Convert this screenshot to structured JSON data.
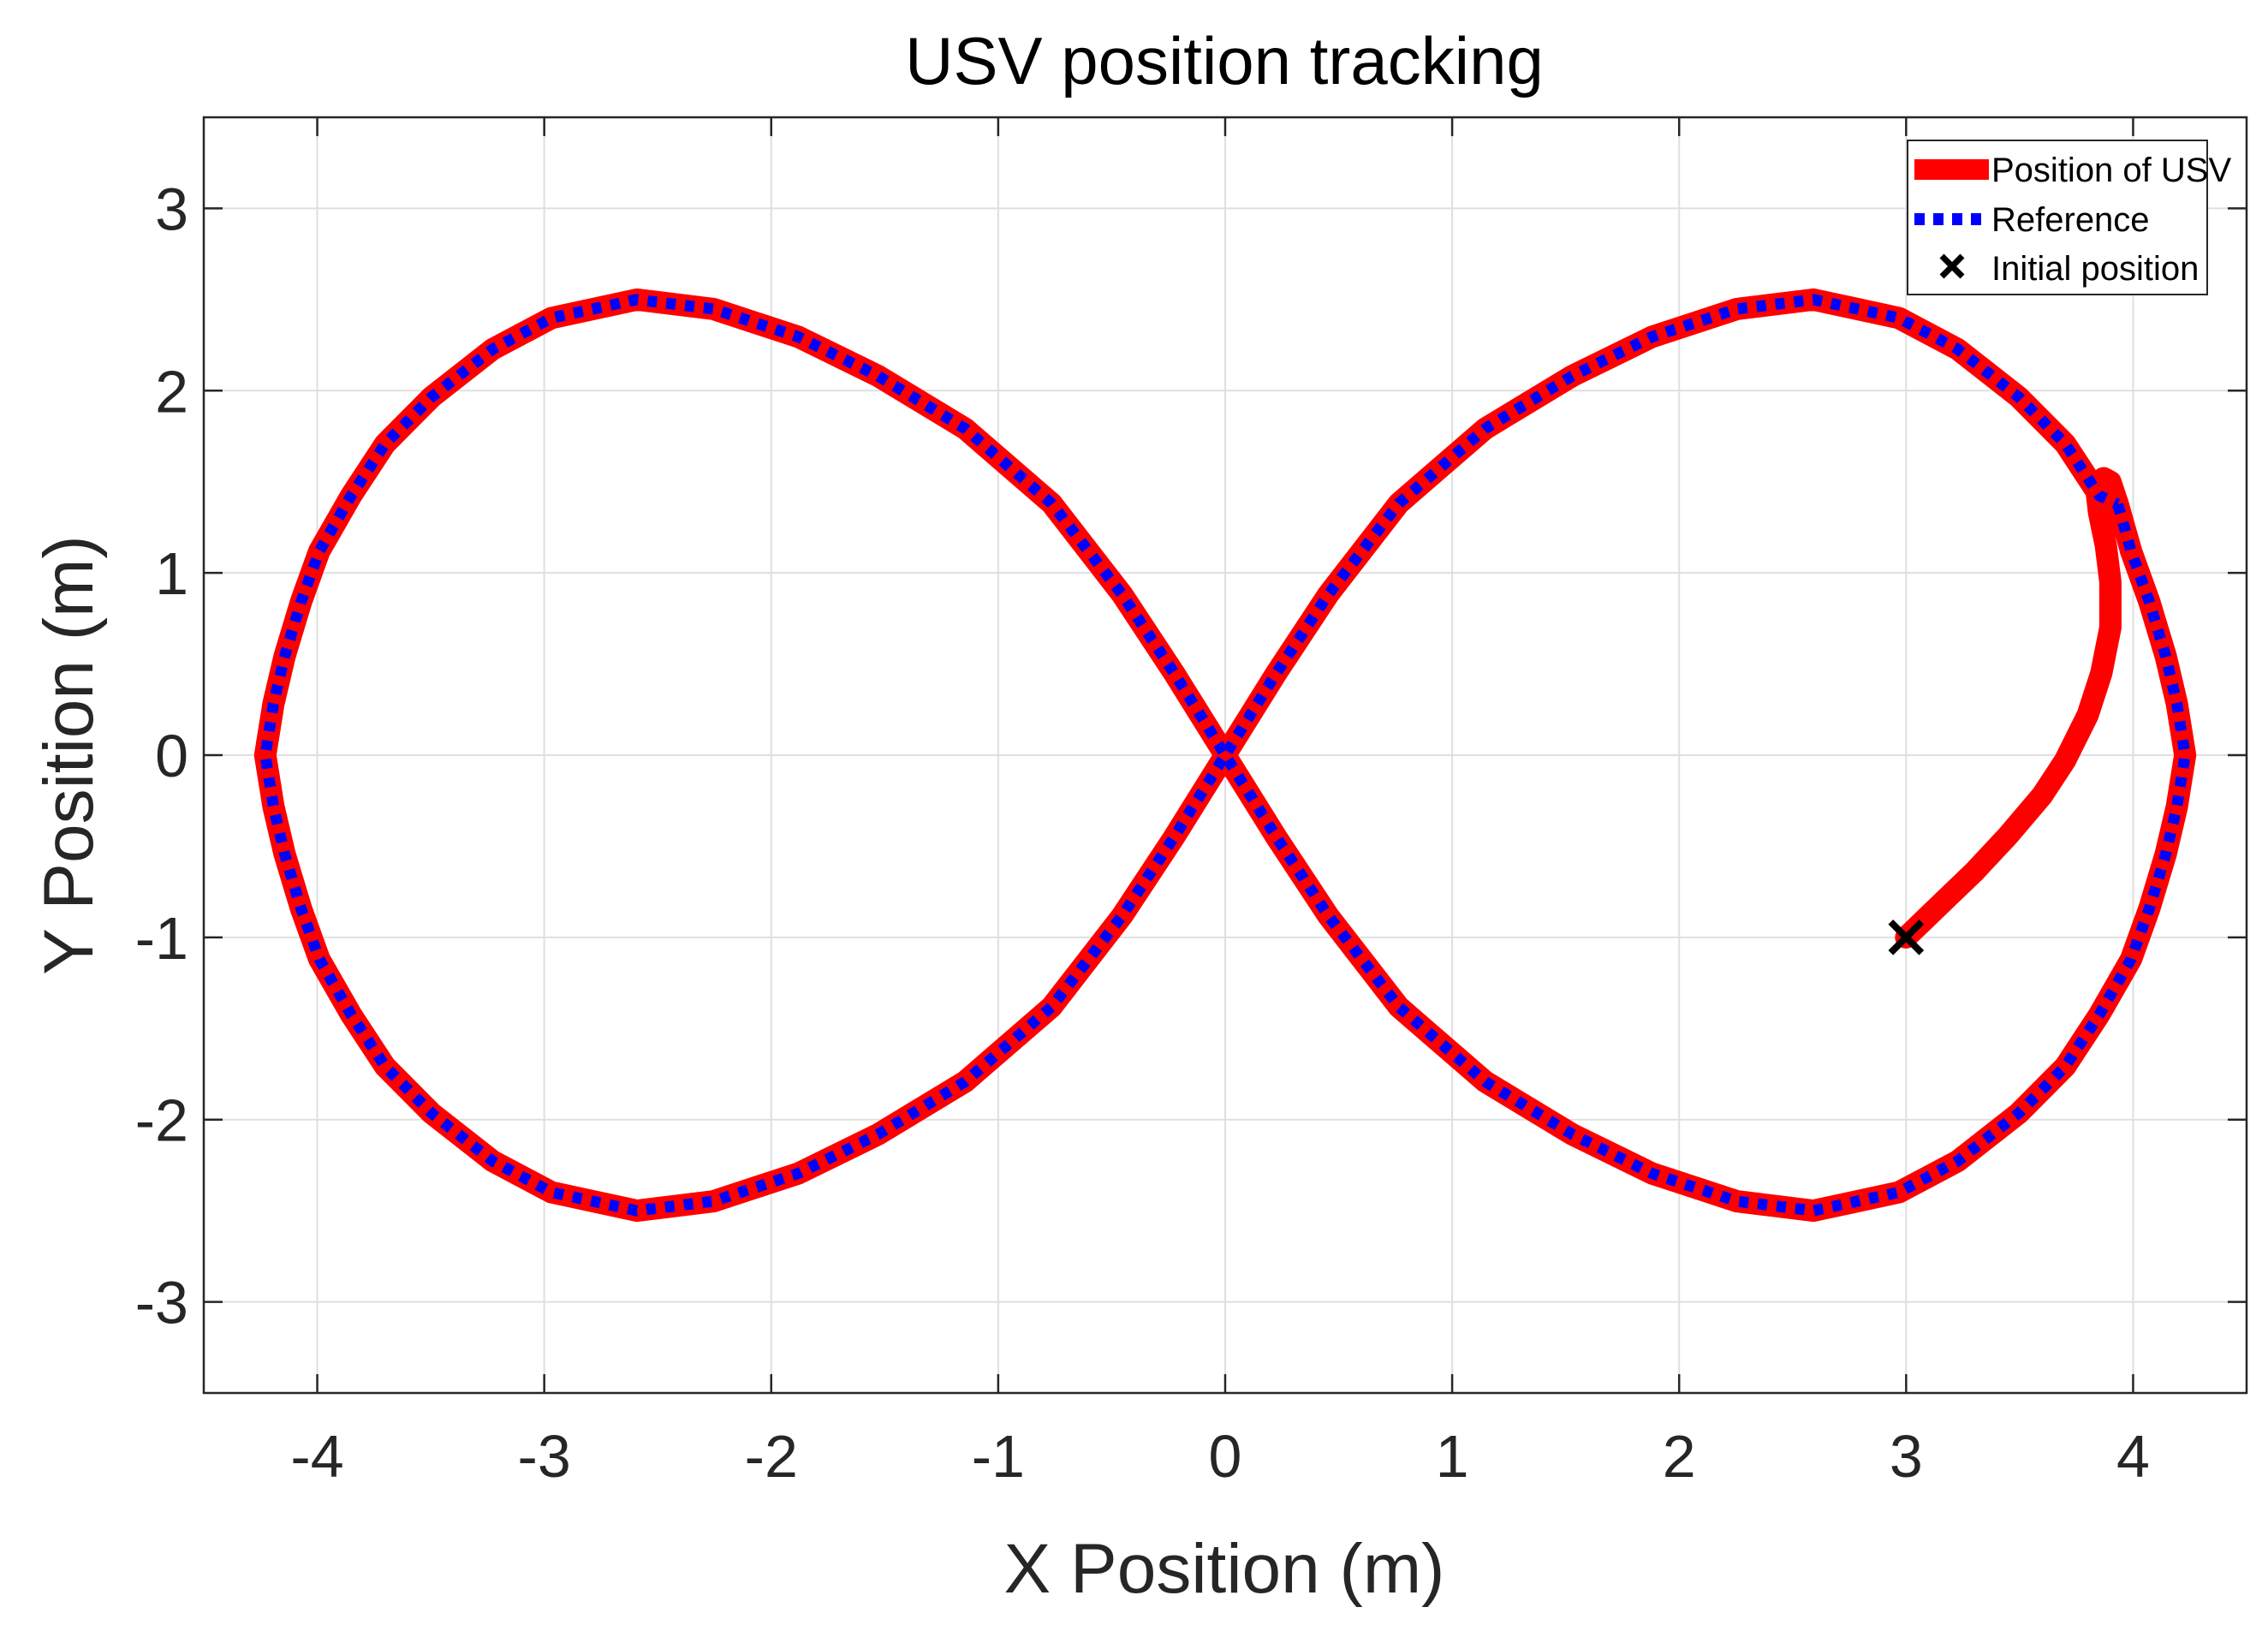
{
  "chart_data": {
    "type": "line",
    "title": "USV position tracking",
    "xlabel": "X Position (m)",
    "ylabel": "Y Position (m)",
    "xlim": [
      -4.5,
      4.5
    ],
    "ylim": [
      -3.5,
      3.5
    ],
    "xticks": [
      -4,
      -3,
      -2,
      -1,
      0,
      1,
      2,
      3,
      4
    ],
    "yticks": [
      -3,
      -2,
      -1,
      0,
      1,
      2,
      3
    ],
    "grid": true,
    "legend_position": "top-right",
    "series": [
      {
        "name": "Position of USV",
        "color": "#ff0000",
        "style": "solid",
        "points": [
          [
            3.0,
            -1.0
          ],
          [
            3.15,
            -0.82
          ],
          [
            3.3,
            -0.64
          ],
          [
            3.45,
            -0.44
          ],
          [
            3.6,
            -0.22
          ],
          [
            3.7,
            -0.03
          ],
          [
            3.8,
            0.22
          ],
          [
            3.86,
            0.45
          ],
          [
            3.9,
            0.7
          ],
          [
            3.9,
            0.95
          ],
          [
            3.88,
            1.15
          ],
          [
            3.85,
            1.33
          ],
          [
            3.84,
            1.44
          ],
          [
            3.87,
            1.52
          ],
          [
            3.9,
            1.5
          ],
          [
            3.933,
            1.376
          ],
          [
            3.991,
            1.119
          ],
          [
            4.072,
            0.84
          ],
          [
            4.144,
            0.542
          ],
          [
            4.193,
            0.282
          ],
          [
            4.229,
            0.0
          ],
          [
            4.193,
            -0.282
          ],
          [
            4.144,
            -0.542
          ],
          [
            4.072,
            -0.84
          ],
          [
            3.991,
            -1.119
          ],
          [
            3.851,
            -1.424
          ],
          [
            3.701,
            -1.708
          ],
          [
            3.496,
            -1.965
          ],
          [
            3.227,
            -2.228
          ],
          [
            2.968,
            -2.399
          ],
          [
            2.592,
            -2.5
          ],
          [
            2.255,
            -2.448
          ],
          [
            1.88,
            -2.295
          ],
          [
            1.53,
            -2.081
          ],
          [
            1.146,
            -1.792
          ],
          [
            0.765,
            -1.381
          ],
          [
            0.454,
            -0.882
          ],
          [
            0.225,
            -0.449
          ],
          [
            0.0,
            0.0
          ],
          [
            -0.225,
            0.449
          ],
          [
            -0.454,
            0.882
          ],
          [
            -0.765,
            1.381
          ],
          [
            -1.146,
            1.792
          ],
          [
            -1.53,
            2.081
          ],
          [
            -1.88,
            2.295
          ],
          [
            -2.255,
            2.448
          ],
          [
            -2.592,
            2.5
          ],
          [
            -2.968,
            2.399
          ],
          [
            -3.227,
            2.228
          ],
          [
            -3.496,
            1.965
          ],
          [
            -3.701,
            1.708
          ],
          [
            -3.851,
            1.424
          ],
          [
            -3.991,
            1.119
          ],
          [
            -4.072,
            0.84
          ],
          [
            -4.144,
            0.542
          ],
          [
            -4.193,
            0.282
          ],
          [
            -4.229,
            0.0
          ],
          [
            -4.193,
            -0.282
          ],
          [
            -4.144,
            -0.542
          ],
          [
            -4.072,
            -0.84
          ],
          [
            -3.991,
            -1.119
          ],
          [
            -3.851,
            -1.424
          ],
          [
            -3.701,
            -1.708
          ],
          [
            -3.496,
            -1.965
          ],
          [
            -3.227,
            -2.228
          ],
          [
            -2.968,
            -2.399
          ],
          [
            -2.592,
            -2.5
          ],
          [
            -2.255,
            -2.448
          ],
          [
            -1.88,
            -2.295
          ],
          [
            -1.53,
            -2.081
          ],
          [
            -1.146,
            -1.792
          ],
          [
            -0.765,
            -1.381
          ],
          [
            -0.454,
            -0.882
          ],
          [
            -0.225,
            -0.449
          ],
          [
            0.0,
            0.0
          ],
          [
            0.225,
            0.449
          ],
          [
            0.454,
            0.882
          ],
          [
            0.765,
            1.381
          ],
          [
            1.146,
            1.792
          ],
          [
            1.53,
            2.081
          ],
          [
            1.88,
            2.295
          ],
          [
            2.255,
            2.448
          ],
          [
            2.592,
            2.5
          ],
          [
            2.968,
            2.399
          ],
          [
            3.227,
            2.228
          ],
          [
            3.496,
            1.965
          ],
          [
            3.701,
            1.708
          ],
          [
            3.851,
            1.424
          ],
          [
            3.933,
            1.376
          ]
        ]
      },
      {
        "name": "Reference",
        "color": "#0000ff",
        "style": "dotted",
        "points": [
          [
            3.933,
            1.376
          ],
          [
            3.991,
            1.119
          ],
          [
            4.072,
            0.84
          ],
          [
            4.144,
            0.542
          ],
          [
            4.193,
            0.282
          ],
          [
            4.229,
            0.0
          ],
          [
            4.193,
            -0.282
          ],
          [
            4.144,
            -0.542
          ],
          [
            4.072,
            -0.84
          ],
          [
            3.991,
            -1.119
          ],
          [
            3.851,
            -1.424
          ],
          [
            3.701,
            -1.708
          ],
          [
            3.496,
            -1.965
          ],
          [
            3.227,
            -2.228
          ],
          [
            2.968,
            -2.399
          ],
          [
            2.592,
            -2.5
          ],
          [
            2.255,
            -2.448
          ],
          [
            1.88,
            -2.295
          ],
          [
            1.53,
            -2.081
          ],
          [
            1.146,
            -1.792
          ],
          [
            0.765,
            -1.381
          ],
          [
            0.454,
            -0.882
          ],
          [
            0.225,
            -0.449
          ],
          [
            0.0,
            0.0
          ],
          [
            -0.225,
            0.449
          ],
          [
            -0.454,
            0.882
          ],
          [
            -0.765,
            1.381
          ],
          [
            -1.146,
            1.792
          ],
          [
            -1.53,
            2.081
          ],
          [
            -1.88,
            2.295
          ],
          [
            -2.255,
            2.448
          ],
          [
            -2.592,
            2.5
          ],
          [
            -2.968,
            2.399
          ],
          [
            -3.227,
            2.228
          ],
          [
            -3.496,
            1.965
          ],
          [
            -3.701,
            1.708
          ],
          [
            -3.851,
            1.424
          ],
          [
            -3.991,
            1.119
          ],
          [
            -4.072,
            0.84
          ],
          [
            -4.144,
            0.542
          ],
          [
            -4.193,
            0.282
          ],
          [
            -4.229,
            0.0
          ],
          [
            -4.193,
            -0.282
          ],
          [
            -4.144,
            -0.542
          ],
          [
            -4.072,
            -0.84
          ],
          [
            -3.991,
            -1.119
          ],
          [
            -3.851,
            -1.424
          ],
          [
            -3.701,
            -1.708
          ],
          [
            -3.496,
            -1.965
          ],
          [
            -3.227,
            -2.228
          ],
          [
            -2.968,
            -2.399
          ],
          [
            -2.592,
            -2.5
          ],
          [
            -2.255,
            -2.448
          ],
          [
            -1.88,
            -2.295
          ],
          [
            -1.53,
            -2.081
          ],
          [
            -1.146,
            -1.792
          ],
          [
            -0.765,
            -1.381
          ],
          [
            -0.454,
            -0.882
          ],
          [
            -0.225,
            -0.449
          ],
          [
            0.0,
            0.0
          ],
          [
            0.225,
            0.449
          ],
          [
            0.454,
            0.882
          ],
          [
            0.765,
            1.381
          ],
          [
            1.146,
            1.792
          ],
          [
            1.53,
            2.081
          ],
          [
            1.88,
            2.295
          ],
          [
            2.255,
            2.448
          ],
          [
            2.592,
            2.5
          ],
          [
            2.968,
            2.399
          ],
          [
            3.227,
            2.228
          ],
          [
            3.496,
            1.965
          ],
          [
            3.701,
            1.708
          ],
          [
            3.851,
            1.424
          ],
          [
            3.933,
            1.376
          ]
        ]
      }
    ],
    "markers": [
      {
        "name": "Initial position",
        "symbol": "x",
        "color": "#000000",
        "x": 3.0,
        "y": -1.0
      }
    ]
  }
}
